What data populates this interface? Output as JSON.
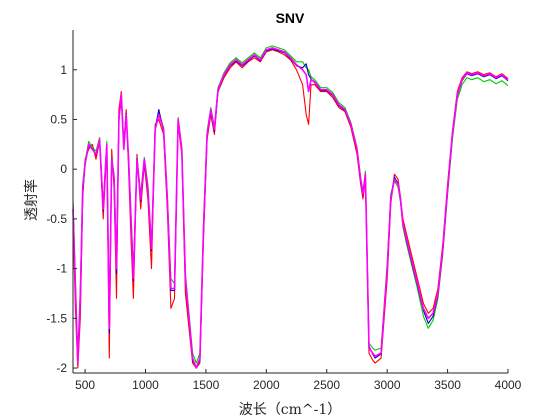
{
  "chart_data": {
    "type": "line",
    "title": "SNV",
    "xlabel": "波长（cm^-1）",
    "ylabel": "透射率",
    "xlim": [
      400,
      4000
    ],
    "ylim": [
      -2.05,
      1.4
    ],
    "x_ticks": [
      500,
      1000,
      1500,
      2000,
      2500,
      3000,
      3500,
      4000
    ],
    "y_ticks": [
      -2,
      -1.5,
      -1,
      -0.5,
      0,
      0.5,
      1
    ],
    "x_tick_labels": [
      "500",
      "1000",
      "1500",
      "2000",
      "2500",
      "3000",
      "3500",
      "4000"
    ],
    "y_tick_labels": [
      "-2",
      "-1.5",
      "-1",
      "-0.5",
      "0",
      "0.5",
      "1"
    ],
    "grid": false,
    "x": [
      400,
      420,
      440,
      460,
      480,
      500,
      530,
      560,
      590,
      620,
      650,
      680,
      700,
      720,
      740,
      760,
      780,
      800,
      820,
      840,
      860,
      880,
      900,
      930,
      960,
      990,
      1020,
      1050,
      1080,
      1110,
      1150,
      1180,
      1210,
      1240,
      1270,
      1300,
      1330,
      1360,
      1390,
      1420,
      1450,
      1480,
      1510,
      1540,
      1570,
      1600,
      1650,
      1700,
      1750,
      1800,
      1850,
      1900,
      1950,
      2000,
      2050,
      2100,
      2150,
      2200,
      2250,
      2300,
      2330,
      2350,
      2370,
      2400,
      2450,
      2500,
      2550,
      2600,
      2650,
      2700,
      2750,
      2780,
      2800,
      2820,
      2850,
      2880,
      2900,
      2950,
      3000,
      3030,
      3060,
      3090,
      3110,
      3130,
      3160,
      3200,
      3250,
      3300,
      3340,
      3380,
      3420,
      3460,
      3500,
      3540,
      3580,
      3620,
      3660,
      3700,
      3750,
      3800,
      3850,
      3900,
      3950,
      4000
    ],
    "series": [
      {
        "color": "#ff00ff",
        "values": [
          -0.4,
          -1.2,
          -1.95,
          -1.3,
          -0.2,
          0.05,
          0.25,
          0.2,
          0.15,
          0.3,
          -0.4,
          0.25,
          -1.6,
          0.1,
          -0.1,
          -1.0,
          0.5,
          0.75,
          0.2,
          0.55,
          0.1,
          -0.5,
          -1.1,
          0.1,
          -0.3,
          0.1,
          -0.2,
          -0.8,
          0.4,
          0.55,
          0.4,
          -0.3,
          -1.2,
          -1.2,
          0.5,
          0.2,
          -1.1,
          -1.5,
          -1.9,
          -2.0,
          -1.9,
          -0.6,
          0.35,
          0.6,
          0.4,
          0.8,
          0.95,
          1.05,
          1.1,
          1.05,
          1.1,
          1.15,
          1.1,
          1.2,
          1.22,
          1.2,
          1.18,
          1.12,
          1.05,
          1.0,
          0.95,
          0.78,
          0.9,
          0.88,
          0.8,
          0.8,
          0.75,
          0.65,
          0.6,
          0.45,
          0.2,
          -0.1,
          -0.25,
          -0.05,
          -1.8,
          -1.85,
          -1.88,
          -1.85,
          -1.0,
          -0.3,
          -0.1,
          -0.15,
          -0.3,
          -0.55,
          -0.7,
          -0.9,
          -1.15,
          -1.4,
          -1.5,
          -1.45,
          -1.25,
          -0.8,
          -0.2,
          0.35,
          0.75,
          0.9,
          0.97,
          0.95,
          0.97,
          0.94,
          0.96,
          0.92,
          0.95,
          0.9
        ]
      },
      {
        "color": "#ff0000",
        "values": [
          -0.5,
          -1.4,
          -2.0,
          -1.5,
          -0.3,
          0.1,
          0.2,
          0.25,
          0.1,
          0.28,
          -0.5,
          0.2,
          -1.9,
          0.2,
          -0.2,
          -1.3,
          0.6,
          0.78,
          0.25,
          0.6,
          0.0,
          -0.7,
          -1.3,
          0.15,
          -0.4,
          0.05,
          -0.3,
          -1.0,
          0.45,
          0.5,
          0.35,
          -0.4,
          -1.4,
          -1.3,
          0.45,
          0.15,
          -1.25,
          -1.6,
          -1.95,
          -2.0,
          -1.95,
          -0.7,
          0.3,
          0.55,
          0.35,
          0.78,
          0.92,
          1.02,
          1.08,
          1.02,
          1.08,
          1.12,
          1.08,
          1.18,
          1.2,
          1.18,
          1.15,
          1.1,
          1.0,
          0.85,
          0.55,
          0.45,
          0.85,
          0.85,
          0.78,
          0.78,
          0.72,
          0.62,
          0.58,
          0.42,
          0.15,
          -0.15,
          -0.3,
          -0.1,
          -1.85,
          -1.92,
          -1.95,
          -1.9,
          -1.1,
          -0.35,
          -0.05,
          -0.1,
          -0.28,
          -0.5,
          -0.65,
          -0.85,
          -1.1,
          -1.35,
          -1.45,
          -1.4,
          -1.2,
          -0.75,
          -0.15,
          0.38,
          0.78,
          0.92,
          0.98,
          0.96,
          0.98,
          0.95,
          0.97,
          0.93,
          0.96,
          0.91
        ]
      },
      {
        "color": "#00cc00",
        "values": [
          -0.3,
          -1.1,
          -1.85,
          -1.2,
          -0.15,
          0.08,
          0.28,
          0.22,
          0.18,
          0.32,
          -0.35,
          0.28,
          -1.5,
          0.12,
          -0.05,
          -0.9,
          0.48,
          0.72,
          0.22,
          0.52,
          0.12,
          -0.45,
          -1.0,
          0.12,
          -0.25,
          0.12,
          -0.15,
          -0.75,
          0.42,
          0.57,
          0.42,
          -0.25,
          -1.1,
          -1.15,
          0.52,
          0.22,
          -1.05,
          -1.45,
          -1.85,
          -1.95,
          -1.85,
          -0.55,
          0.38,
          0.62,
          0.42,
          0.82,
          0.97,
          1.07,
          1.12,
          1.07,
          1.12,
          1.17,
          1.12,
          1.22,
          1.24,
          1.22,
          1.2,
          1.14,
          1.08,
          1.08,
          1.02,
          1.0,
          0.93,
          0.9,
          0.82,
          0.82,
          0.77,
          0.67,
          0.62,
          0.47,
          0.22,
          -0.08,
          -0.22,
          -0.02,
          -1.75,
          -1.8,
          -1.82,
          -1.8,
          -0.95,
          -0.25,
          -0.12,
          -0.18,
          -0.33,
          -0.58,
          -0.75,
          -0.95,
          -1.2,
          -1.48,
          -1.6,
          -1.52,
          -1.3,
          -0.85,
          -0.25,
          0.3,
          0.7,
          0.85,
          0.92,
          0.9,
          0.92,
          0.88,
          0.9,
          0.86,
          0.89,
          0.84
        ]
      },
      {
        "color": "#0000cc",
        "values": [
          -0.35,
          -1.25,
          -1.9,
          -1.35,
          -0.25,
          0.06,
          0.23,
          0.21,
          0.14,
          0.29,
          -0.42,
          0.24,
          -1.65,
          0.11,
          -0.12,
          -1.05,
          0.52,
          0.74,
          0.21,
          0.56,
          0.08,
          -0.52,
          -1.12,
          0.11,
          -0.32,
          0.08,
          -0.22,
          -0.82,
          0.41,
          0.6,
          0.38,
          -0.32,
          -1.22,
          -1.22,
          0.48,
          0.19,
          -1.12,
          -1.52,
          -1.92,
          -2.0,
          -1.92,
          -0.62,
          0.34,
          0.58,
          0.38,
          0.79,
          0.94,
          1.04,
          1.09,
          1.04,
          1.09,
          1.14,
          1.09,
          1.19,
          1.21,
          1.19,
          1.17,
          1.11,
          1.04,
          1.02,
          1.06,
          0.95,
          0.91,
          0.87,
          0.79,
          0.79,
          0.74,
          0.64,
          0.59,
          0.44,
          0.19,
          -0.11,
          -0.26,
          -0.06,
          -1.78,
          -1.86,
          -1.9,
          -1.86,
          -1.02,
          -0.28,
          -0.08,
          -0.14,
          -0.31,
          -0.56,
          -0.72,
          -0.92,
          -1.17,
          -1.42,
          -1.55,
          -1.48,
          -1.27,
          -0.82,
          -0.22,
          0.34,
          0.74,
          0.89,
          0.96,
          0.94,
          0.96,
          0.93,
          0.95,
          0.91,
          0.94,
          0.89
        ]
      }
    ]
  }
}
